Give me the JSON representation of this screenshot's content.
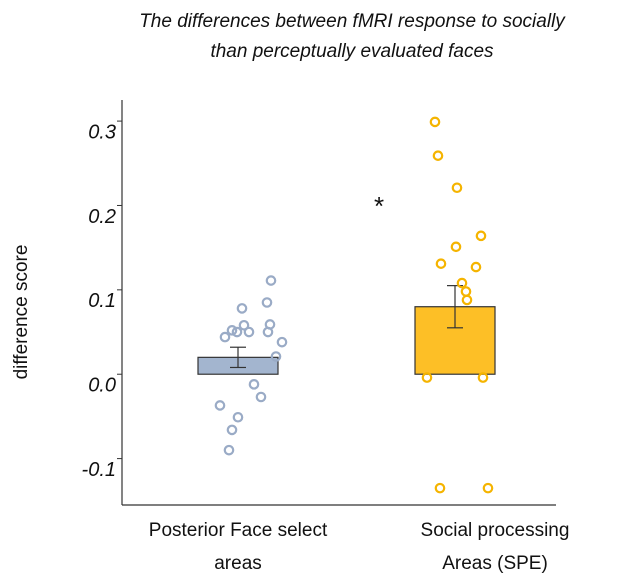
{
  "chart_data": {
    "type": "bar",
    "title": [
      "The differences between fMRI response to socially",
      "than perceptually evaluated faces"
    ],
    "y_label": "difference score",
    "annotation": "*",
    "ylim": [
      -0.155,
      0.325
    ],
    "yticks": [
      0.3,
      0.2,
      0.1,
      {
        "value": 0,
        "label": "0.0"
      },
      -0.1
    ],
    "categories": [
      [
        "Posterior Face select",
        "areas"
      ],
      [
        "Social processing",
        "Areas (SPE)"
      ]
    ],
    "series": [
      {
        "color": "#a3b5cf",
        "point_color": "#9aabc6",
        "value": 0.02,
        "error": 0.012,
        "points": [
          0.111,
          0.078,
          0.085,
          0.044,
          0.052,
          0.05,
          0.058,
          0.05,
          0.059,
          0.05,
          0.038,
          0.021,
          -0.012,
          -0.027,
          -0.037,
          -0.051,
          -0.066,
          -0.09
        ]
      },
      {
        "color": "#fdbf26",
        "point_color": "#f5b400",
        "value": 0.08,
        "error": 0.025,
        "points": [
          0.299,
          0.259,
          0.221,
          0.164,
          0.151,
          0.131,
          0.127,
          0.108,
          0.098,
          0.088,
          -0.004,
          -0.004,
          -0.135,
          -0.135
        ]
      }
    ]
  }
}
